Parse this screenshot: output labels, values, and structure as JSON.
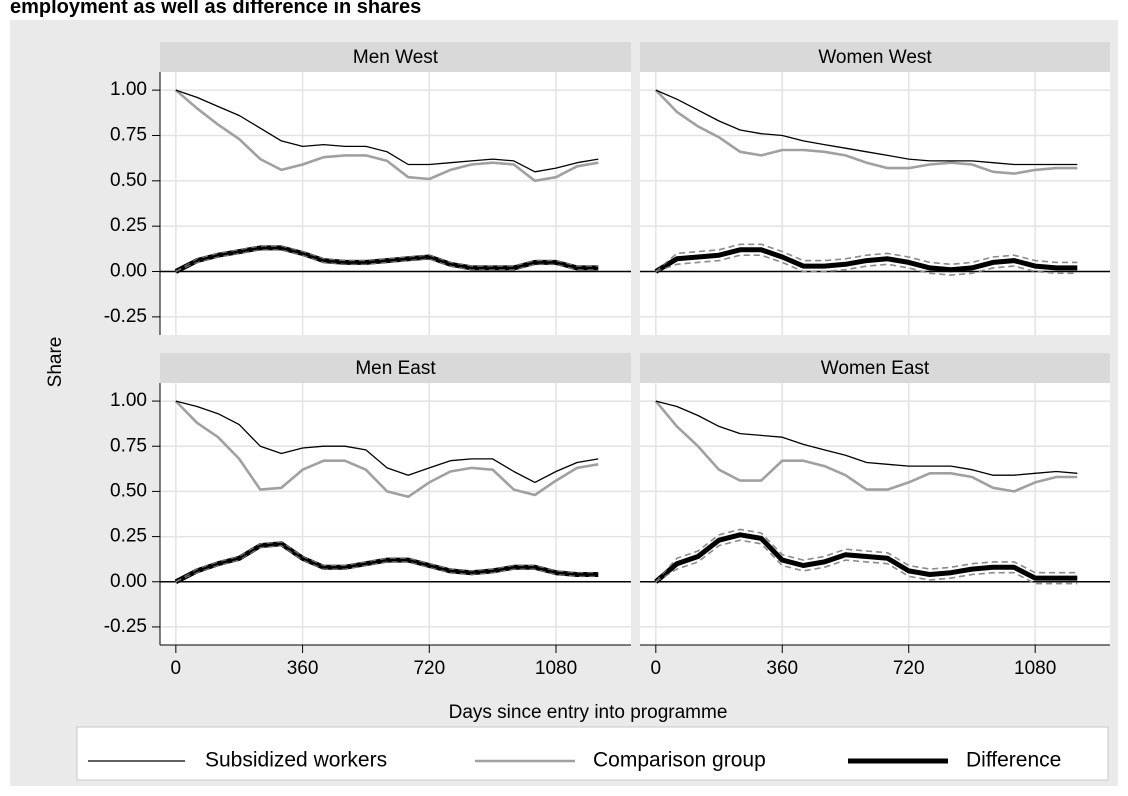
{
  "chart_data": {
    "type": "line",
    "title": "employment as well as difference in shares",
    "ylabel": "Share",
    "xlabel": "Days since entry into programme",
    "xlim": [
      -45,
      1293
    ],
    "ylim": [
      -0.35,
      1.1
    ],
    "xticks": [
      0,
      360,
      720,
      1080
    ],
    "yticks": [
      -0.25,
      {
        "value": 0,
        "label": "0.00"
      },
      0.25,
      {
        "value": 0.5,
        "label": "0.50"
      },
      0.75,
      {
        "value": 1,
        "label": "1.00"
      }
    ],
    "yline": 0,
    "grid": true,
    "legend": "bottom",
    "series": [
      {
        "name": "Subsidized workers",
        "color": "#000000",
        "width": 1.3
      },
      {
        "name": "Comparison group",
        "color": "#a0a0a0",
        "width": 2.6
      },
      {
        "name": "Difference",
        "color": "#000000",
        "width": 5
      }
    ],
    "ci_color": "#8c8c8c",
    "x": [
      0,
      60,
      120,
      180,
      240,
      300,
      360,
      420,
      480,
      540,
      600,
      660,
      720,
      780,
      840,
      900,
      960,
      1020,
      1080,
      1140,
      1200
    ],
    "panels": [
      {
        "title": "Men West",
        "values": [
          [
            1.0,
            0.96,
            0.91,
            0.86,
            0.79,
            0.72,
            0.69,
            0.7,
            0.69,
            0.69,
            0.66,
            0.59,
            0.59,
            0.6,
            0.61,
            0.62,
            0.61,
            0.55,
            0.57,
            0.6,
            0.62
          ],
          [
            1.0,
            0.9,
            0.81,
            0.73,
            0.62,
            0.56,
            0.59,
            0.63,
            0.64,
            0.64,
            0.61,
            0.52,
            0.51,
            0.56,
            0.59,
            0.6,
            0.59,
            0.5,
            0.52,
            0.58,
            0.6
          ],
          [
            0.0,
            0.06,
            0.09,
            0.11,
            0.13,
            0.13,
            0.1,
            0.06,
            0.05,
            0.05,
            0.06,
            0.07,
            0.08,
            0.04,
            0.02,
            0.02,
            0.02,
            0.05,
            0.05,
            0.02,
            0.02
          ]
        ],
        "ci_lower": [
          0.0,
          0.05,
          0.08,
          0.1,
          0.12,
          0.12,
          0.09,
          0.05,
          0.04,
          0.04,
          0.05,
          0.06,
          0.07,
          0.03,
          0.01,
          0.01,
          0.01,
          0.04,
          0.04,
          0.01,
          0.01
        ],
        "ci_upper": [
          0.0,
          0.07,
          0.1,
          0.12,
          0.14,
          0.14,
          0.11,
          0.07,
          0.06,
          0.06,
          0.07,
          0.08,
          0.09,
          0.05,
          0.03,
          0.03,
          0.03,
          0.06,
          0.06,
          0.03,
          0.03
        ]
      },
      {
        "title": "Women West",
        "values": [
          [
            1.0,
            0.95,
            0.89,
            0.83,
            0.78,
            0.76,
            0.75,
            0.72,
            0.7,
            0.68,
            0.66,
            0.64,
            0.62,
            0.61,
            0.61,
            0.61,
            0.6,
            0.59,
            0.59,
            0.59,
            0.59
          ],
          [
            1.0,
            0.88,
            0.8,
            0.74,
            0.66,
            0.64,
            0.67,
            0.67,
            0.66,
            0.64,
            0.6,
            0.57,
            0.57,
            0.59,
            0.6,
            0.59,
            0.55,
            0.54,
            0.56,
            0.57,
            0.57
          ],
          [
            0.0,
            0.07,
            0.08,
            0.09,
            0.12,
            0.12,
            0.08,
            0.03,
            0.03,
            0.04,
            0.06,
            0.07,
            0.05,
            0.02,
            0.01,
            0.02,
            0.05,
            0.06,
            0.03,
            0.02,
            0.02
          ]
        ],
        "ci_lower": [
          0.0,
          0.04,
          0.05,
          0.06,
          0.09,
          0.09,
          0.05,
          0.0,
          0.0,
          0.01,
          0.03,
          0.04,
          0.02,
          -0.01,
          -0.02,
          -0.01,
          0.02,
          0.03,
          0.0,
          -0.01,
          -0.01
        ],
        "ci_upper": [
          0.0,
          0.1,
          0.11,
          0.12,
          0.15,
          0.15,
          0.11,
          0.06,
          0.06,
          0.07,
          0.09,
          0.1,
          0.08,
          0.05,
          0.04,
          0.05,
          0.08,
          0.09,
          0.06,
          0.05,
          0.05
        ]
      },
      {
        "title": "Men East",
        "values": [
          [
            1.0,
            0.97,
            0.93,
            0.87,
            0.75,
            0.71,
            0.74,
            0.75,
            0.75,
            0.73,
            0.63,
            0.59,
            0.63,
            0.67,
            0.68,
            0.68,
            0.61,
            0.55,
            0.61,
            0.66,
            0.68
          ],
          [
            1.0,
            0.88,
            0.8,
            0.68,
            0.51,
            0.52,
            0.62,
            0.67,
            0.67,
            0.62,
            0.5,
            0.47,
            0.55,
            0.61,
            0.63,
            0.62,
            0.51,
            0.48,
            0.56,
            0.63,
            0.65
          ],
          [
            0.0,
            0.06,
            0.1,
            0.13,
            0.2,
            0.21,
            0.13,
            0.08,
            0.08,
            0.1,
            0.12,
            0.12,
            0.09,
            0.06,
            0.05,
            0.06,
            0.08,
            0.08,
            0.05,
            0.04,
            0.04
          ]
        ],
        "ci_lower": [
          0.0,
          0.05,
          0.09,
          0.12,
          0.19,
          0.2,
          0.12,
          0.07,
          0.07,
          0.09,
          0.11,
          0.11,
          0.08,
          0.05,
          0.04,
          0.05,
          0.07,
          0.07,
          0.04,
          0.03,
          0.03
        ],
        "ci_upper": [
          0.0,
          0.07,
          0.11,
          0.14,
          0.21,
          0.22,
          0.14,
          0.09,
          0.09,
          0.11,
          0.13,
          0.13,
          0.1,
          0.07,
          0.06,
          0.07,
          0.09,
          0.09,
          0.06,
          0.05,
          0.05
        ]
      },
      {
        "title": "Women East",
        "values": [
          [
            1.0,
            0.97,
            0.92,
            0.86,
            0.82,
            0.81,
            0.8,
            0.76,
            0.73,
            0.7,
            0.66,
            0.65,
            0.64,
            0.64,
            0.64,
            0.62,
            0.59,
            0.59,
            0.6,
            0.61,
            0.6
          ],
          [
            1.0,
            0.86,
            0.75,
            0.62,
            0.56,
            0.56,
            0.67,
            0.67,
            0.64,
            0.59,
            0.51,
            0.51,
            0.55,
            0.6,
            0.6,
            0.58,
            0.52,
            0.5,
            0.55,
            0.58,
            0.58
          ],
          [
            0.0,
            0.1,
            0.14,
            0.23,
            0.26,
            0.24,
            0.12,
            0.09,
            0.11,
            0.15,
            0.14,
            0.13,
            0.06,
            0.04,
            0.05,
            0.07,
            0.08,
            0.08,
            0.02,
            0.02,
            0.02
          ]
        ],
        "ci_lower": [
          0.0,
          0.07,
          0.11,
          0.2,
          0.23,
          0.21,
          0.09,
          0.06,
          0.08,
          0.12,
          0.11,
          0.1,
          0.03,
          0.01,
          0.02,
          0.04,
          0.05,
          0.05,
          -0.01,
          -0.01,
          -0.01
        ],
        "ci_upper": [
          0.0,
          0.13,
          0.17,
          0.26,
          0.29,
          0.27,
          0.15,
          0.12,
          0.14,
          0.18,
          0.17,
          0.16,
          0.09,
          0.07,
          0.08,
          0.1,
          0.11,
          0.11,
          0.05,
          0.05,
          0.05
        ]
      }
    ]
  }
}
